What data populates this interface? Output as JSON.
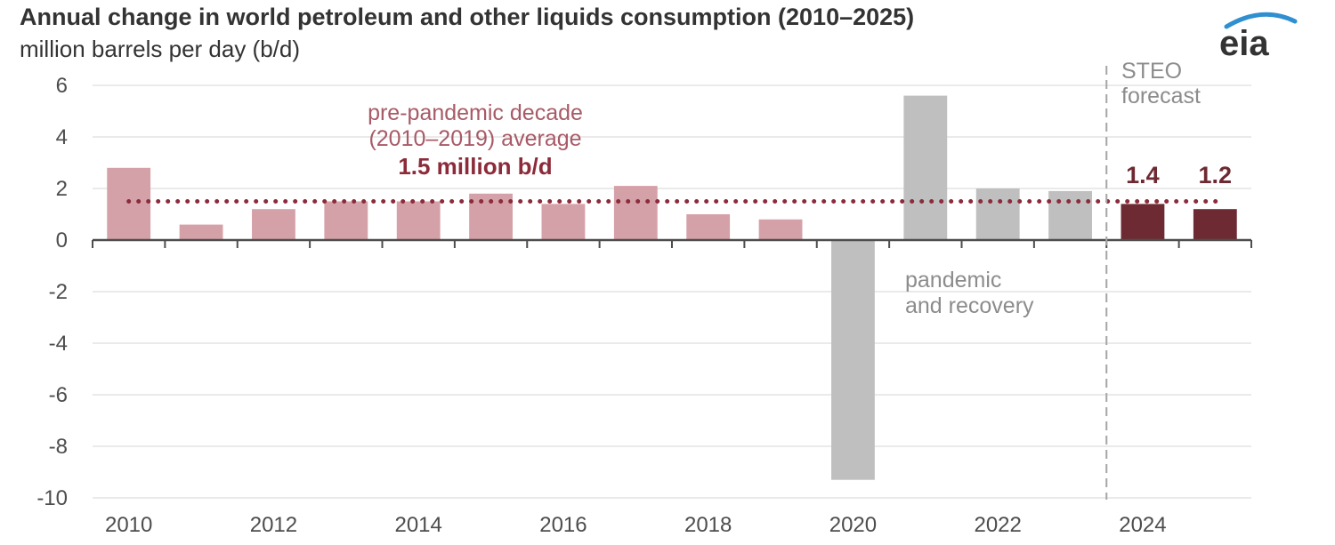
{
  "chart_data": {
    "type": "bar",
    "title": "Annual change in world petroleum and other liquids consumption (2010–2025)",
    "subtitle": "million barrels per day (b/d)",
    "ylim": [
      -10,
      6
    ],
    "y_ticks": [
      6,
      4,
      2,
      0,
      -2,
      -4,
      -6,
      -8,
      -10
    ],
    "x_tick_labels": [
      "2010",
      "2012",
      "2014",
      "2016",
      "2018",
      "2020",
      "2022",
      "2024"
    ],
    "categories": [
      "2010",
      "2011",
      "2012",
      "2013",
      "2014",
      "2015",
      "2016",
      "2017",
      "2018",
      "2019",
      "2020",
      "2021",
      "2022",
      "2023",
      "2024",
      "2025"
    ],
    "values": [
      2.8,
      0.6,
      1.2,
      1.5,
      1.5,
      1.8,
      1.4,
      2.1,
      1.0,
      0.8,
      -9.3,
      5.6,
      2.0,
      1.9,
      1.4,
      1.2
    ],
    "series_groups": [
      {
        "id": "pre-pandemic",
        "start_index": 0,
        "end_index": 9,
        "color": "#d5a1a8"
      },
      {
        "id": "pandemic",
        "start_index": 10,
        "end_index": 13,
        "color": "#bfbfbf"
      },
      {
        "id": "forecast",
        "start_index": 14,
        "end_index": 15,
        "color": "#6e2a32"
      }
    ],
    "average_line": {
      "value": 1.5,
      "start_index": 0,
      "end_index": 15,
      "color": "#8c2b3a"
    },
    "forecast_divider": {
      "between_indices": [
        13,
        14
      ],
      "color": "#a6a6a6"
    },
    "grid": true,
    "annotations": {
      "avg_line1": "pre-pandemic decade",
      "avg_line2": "(2010–2019) average",
      "avg_value": "1.5 million b/d",
      "steo_line1": "STEO",
      "steo_line2": "forecast",
      "pandemic_line1": "pandemic",
      "pandemic_line2": "and recovery"
    },
    "value_labels": [
      {
        "index": 14,
        "text": "1.4"
      },
      {
        "index": 15,
        "text": "1.2"
      }
    ]
  },
  "logo": {
    "text": "eia",
    "accent_color": "#2f8fd0"
  }
}
